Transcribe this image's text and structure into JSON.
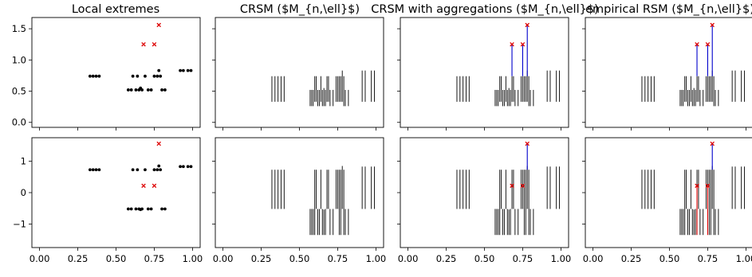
{
  "chart_data": {
    "type": "scatter",
    "layout": "2 rows x 4 columns, shared x and y axes per row",
    "column_titles": [
      "Local extremes",
      "CRSM ($M_{n,\\ell}$)",
      "CRSM with aggregations ($M_{n,\\ell}$)",
      "empirical RSM ($M_{n,\\ell}$)"
    ],
    "x_ticks": [
      "0.00",
      "0.25",
      "0.50",
      "0.75",
      "1.00"
    ],
    "x_tick_values": [
      0,
      0.25,
      0.5,
      0.75,
      1.0
    ],
    "xlim": [
      -0.05,
      1.05
    ],
    "rows": [
      {
        "ylim": [
          -0.08,
          1.68
        ],
        "y_ticks": [
          "0.0",
          "0.5",
          "1.0",
          "1.5"
        ],
        "y_tick_values": [
          0,
          0.5,
          1.0,
          1.5
        ],
        "extremes": [
          {
            "x": 0.33,
            "y": 0.74
          },
          {
            "x": 0.35,
            "y": 0.74
          },
          {
            "x": 0.37,
            "y": 0.74
          },
          {
            "x": 0.39,
            "y": 0.74
          },
          {
            "x": 0.58,
            "y": 0.52
          },
          {
            "x": 0.6,
            "y": 0.52
          },
          {
            "x": 0.61,
            "y": 0.74
          },
          {
            "x": 0.63,
            "y": 0.52
          },
          {
            "x": 0.64,
            "y": 0.74
          },
          {
            "x": 0.65,
            "y": 0.52
          },
          {
            "x": 0.66,
            "y": 0.55
          },
          {
            "x": 0.67,
            "y": 0.52
          },
          {
            "x": 0.69,
            "y": 0.74
          },
          {
            "x": 0.71,
            "y": 0.52
          },
          {
            "x": 0.73,
            "y": 0.52
          },
          {
            "x": 0.75,
            "y": 0.74
          },
          {
            "x": 0.77,
            "y": 0.74
          },
          {
            "x": 0.78,
            "y": 0.83
          },
          {
            "x": 0.79,
            "y": 0.74
          },
          {
            "x": 0.8,
            "y": 0.52
          },
          {
            "x": 0.82,
            "y": 0.52
          },
          {
            "x": 0.92,
            "y": 0.83
          },
          {
            "x": 0.94,
            "y": 0.83
          },
          {
            "x": 0.97,
            "y": 0.83
          },
          {
            "x": 0.99,
            "y": 0.83
          }
        ],
        "aggregated_points": [
          {
            "x": 0.68,
            "y": 1.25
          },
          {
            "x": 0.75,
            "y": 1.25
          },
          {
            "x": 0.78,
            "y": 1.56
          }
        ],
        "segments": [
          {
            "x": 0.32,
            "y0": 0.33,
            "y1": 0.74
          },
          {
            "x": 0.34,
            "y0": 0.33,
            "y1": 0.74
          },
          {
            "x": 0.36,
            "y0": 0.33,
            "y1": 0.74
          },
          {
            "x": 0.38,
            "y0": 0.33,
            "y1": 0.74
          },
          {
            "x": 0.4,
            "y0": 0.33,
            "y1": 0.74
          },
          {
            "x": 0.57,
            "y0": 0.26,
            "y1": 0.52
          },
          {
            "x": 0.58,
            "y0": 0.26,
            "y1": 0.52
          },
          {
            "x": 0.59,
            "y0": 0.26,
            "y1": 0.52
          },
          {
            "x": 0.6,
            "y0": 0.33,
            "y1": 0.74
          },
          {
            "x": 0.61,
            "y0": 0.33,
            "y1": 0.74
          },
          {
            "x": 0.62,
            "y0": 0.26,
            "y1": 0.52
          },
          {
            "x": 0.63,
            "y0": 0.26,
            "y1": 0.52
          },
          {
            "x": 0.64,
            "y0": 0.33,
            "y1": 0.74
          },
          {
            "x": 0.65,
            "y0": 0.26,
            "y1": 0.52
          },
          {
            "x": 0.66,
            "y0": 0.26,
            "y1": 0.55
          },
          {
            "x": 0.67,
            "y0": 0.26,
            "y1": 0.52
          },
          {
            "x": 0.68,
            "y0": 0.33,
            "y1": 0.74
          },
          {
            "x": 0.69,
            "y0": 0.33,
            "y1": 0.74
          },
          {
            "x": 0.7,
            "y0": 0.26,
            "y1": 0.52
          },
          {
            "x": 0.72,
            "y0": 0.26,
            "y1": 0.52
          },
          {
            "x": 0.74,
            "y0": 0.33,
            "y1": 0.74
          },
          {
            "x": 0.75,
            "y0": 0.33,
            "y1": 0.74
          },
          {
            "x": 0.76,
            "y0": 0.33,
            "y1": 0.74
          },
          {
            "x": 0.77,
            "y0": 0.33,
            "y1": 0.74
          },
          {
            "x": 0.78,
            "y0": 0.33,
            "y1": 0.83
          },
          {
            "x": 0.79,
            "y0": 0.26,
            "y1": 0.74
          },
          {
            "x": 0.8,
            "y0": 0.26,
            "y1": 0.52
          },
          {
            "x": 0.82,
            "y0": 0.26,
            "y1": 0.52
          },
          {
            "x": 0.91,
            "y0": 0.33,
            "y1": 0.83
          },
          {
            "x": 0.93,
            "y0": 0.33,
            "y1": 0.83
          },
          {
            "x": 0.97,
            "y0": 0.33,
            "y1": 0.83
          },
          {
            "x": 0.99,
            "y0": 0.33,
            "y1": 0.83
          }
        ],
        "crsm_agg_highlight": [
          {
            "x": 0.68,
            "y0": 0.74,
            "y1": 1.25,
            "color": "#0000cc"
          },
          {
            "x": 0.75,
            "y0": 0.74,
            "y1": 1.25,
            "color": "#0000cc"
          },
          {
            "x": 0.78,
            "y0": 0.74,
            "y1": 1.56,
            "color": "#0000cc"
          }
        ],
        "rsm_highlight": [
          {
            "x": 0.68,
            "y0": 0.74,
            "y1": 1.25,
            "color": "#0000cc"
          },
          {
            "x": 0.75,
            "y0": 0.74,
            "y1": 1.25,
            "color": "#0000cc"
          },
          {
            "x": 0.78,
            "y0": 0.74,
            "y1": 1.56,
            "color": "#0000cc"
          }
        ]
      },
      {
        "ylim": [
          -1.75,
          1.75
        ],
        "y_ticks": [
          "−1",
          "0",
          "1"
        ],
        "y_tick_values": [
          -1,
          0,
          1
        ],
        "extremes": [
          {
            "x": 0.33,
            "y": 0.73
          },
          {
            "x": 0.35,
            "y": 0.73
          },
          {
            "x": 0.37,
            "y": 0.73
          },
          {
            "x": 0.39,
            "y": 0.73
          },
          {
            "x": 0.58,
            "y": -0.52
          },
          {
            "x": 0.6,
            "y": -0.52
          },
          {
            "x": 0.61,
            "y": 0.73
          },
          {
            "x": 0.63,
            "y": -0.52
          },
          {
            "x": 0.64,
            "y": 0.73
          },
          {
            "x": 0.65,
            "y": -0.52
          },
          {
            "x": 0.66,
            "y": -0.54
          },
          {
            "x": 0.67,
            "y": -0.52
          },
          {
            "x": 0.69,
            "y": 0.73
          },
          {
            "x": 0.71,
            "y": -0.52
          },
          {
            "x": 0.73,
            "y": -0.52
          },
          {
            "x": 0.75,
            "y": 0.73
          },
          {
            "x": 0.77,
            "y": 0.73
          },
          {
            "x": 0.78,
            "y": 0.85
          },
          {
            "x": 0.79,
            "y": 0.73
          },
          {
            "x": 0.8,
            "y": -0.52
          },
          {
            "x": 0.82,
            "y": -0.52
          },
          {
            "x": 0.92,
            "y": 0.83
          },
          {
            "x": 0.94,
            "y": 0.83
          },
          {
            "x": 0.97,
            "y": 0.83
          },
          {
            "x": 0.99,
            "y": 0.83
          }
        ],
        "aggregated_points": [
          {
            "x": 0.68,
            "y": 0.22
          },
          {
            "x": 0.75,
            "y": 0.22
          },
          {
            "x": 0.78,
            "y": 1.56
          }
        ],
        "segments": [
          {
            "x": 0.32,
            "y0": -0.52,
            "y1": 0.73
          },
          {
            "x": 0.34,
            "y0": -0.52,
            "y1": 0.73
          },
          {
            "x": 0.36,
            "y0": -0.52,
            "y1": 0.73
          },
          {
            "x": 0.38,
            "y0": -0.52,
            "y1": 0.73
          },
          {
            "x": 0.4,
            "y0": -0.52,
            "y1": 0.73
          },
          {
            "x": 0.57,
            "y0": -1.35,
            "y1": -0.52
          },
          {
            "x": 0.58,
            "y0": -1.35,
            "y1": -0.52
          },
          {
            "x": 0.59,
            "y0": -1.35,
            "y1": -0.52
          },
          {
            "x": 0.6,
            "y0": -1.35,
            "y1": 0.73
          },
          {
            "x": 0.61,
            "y0": -0.52,
            "y1": 0.73
          },
          {
            "x": 0.62,
            "y0": -1.35,
            "y1": -0.52
          },
          {
            "x": 0.63,
            "y0": -1.35,
            "y1": -0.52
          },
          {
            "x": 0.64,
            "y0": -0.52,
            "y1": 0.73
          },
          {
            "x": 0.65,
            "y0": -1.35,
            "y1": -0.52
          },
          {
            "x": 0.66,
            "y0": -1.35,
            "y1": -0.54
          },
          {
            "x": 0.67,
            "y0": -1.35,
            "y1": -0.52
          },
          {
            "x": 0.68,
            "y0": -0.52,
            "y1": 0.73
          },
          {
            "x": 0.69,
            "y0": -0.52,
            "y1": 0.73
          },
          {
            "x": 0.7,
            "y0": -1.35,
            "y1": -0.52
          },
          {
            "x": 0.72,
            "y0": -1.35,
            "y1": -0.52
          },
          {
            "x": 0.74,
            "y0": -0.52,
            "y1": 0.73
          },
          {
            "x": 0.75,
            "y0": -0.52,
            "y1": 0.73
          },
          {
            "x": 0.76,
            "y0": -1.35,
            "y1": 0.73
          },
          {
            "x": 0.77,
            "y0": -1.35,
            "y1": 0.73
          },
          {
            "x": 0.78,
            "y0": -0.52,
            "y1": 0.85
          },
          {
            "x": 0.79,
            "y0": -1.35,
            "y1": 0.73
          },
          {
            "x": 0.8,
            "y0": -1.35,
            "y1": -0.52
          },
          {
            "x": 0.82,
            "y0": -1.35,
            "y1": -0.52
          },
          {
            "x": 0.91,
            "y0": -0.52,
            "y1": 0.83
          },
          {
            "x": 0.93,
            "y0": -0.52,
            "y1": 0.83
          },
          {
            "x": 0.97,
            "y0": -0.52,
            "y1": 0.83
          },
          {
            "x": 0.99,
            "y0": -0.52,
            "y1": 0.83
          }
        ],
        "crsm_agg_highlight": [
          {
            "x": 0.78,
            "y0": 0.73,
            "y1": 1.56,
            "color": "#0000cc"
          }
        ],
        "rsm_highlight": [
          {
            "x": 0.68,
            "y0": -1.35,
            "y1": 0.22,
            "color": "#dd0000"
          },
          {
            "x": 0.75,
            "y0": -1.35,
            "y1": 0.22,
            "color": "#dd0000"
          },
          {
            "x": 0.78,
            "y0": 0.73,
            "y1": 1.56,
            "color": "#0000cc"
          }
        ]
      }
    ],
    "colors": {
      "extremes": "#000000",
      "aggregated_marker": "#dd0000",
      "blue_segment": "#0000cc",
      "red_segment": "#dd0000"
    },
    "grid": false
  }
}
